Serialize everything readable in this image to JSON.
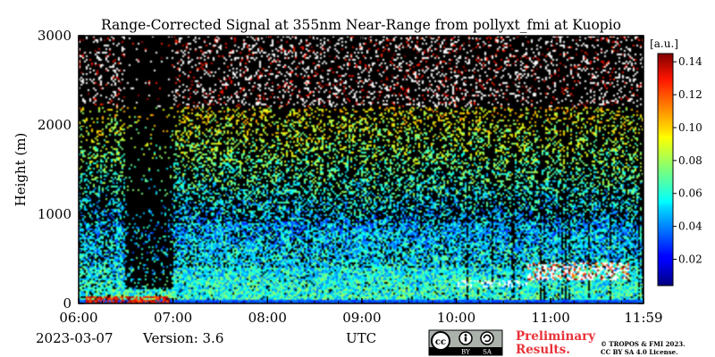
{
  "chart_data": {
    "type": "heatmap",
    "title": "Range-Corrected Signal at 355nm Near-Range from pollyxt_fmi at Kuopio",
    "ylabel": "Height (m)",
    "xlabel": "UTC",
    "x_ticks": [
      "06:00",
      "07:00",
      "08:00",
      "09:00",
      "10:00",
      "11:00",
      "11:59"
    ],
    "x_tick_hours": [
      6.0,
      7.0,
      8.0,
      9.0,
      10.0,
      11.0,
      11.983
    ],
    "xlim": [
      6.0,
      11.983
    ],
    "y_ticks": [
      0,
      1000,
      2000,
      3000
    ],
    "ylim": [
      0,
      3000
    ],
    "colorbar": {
      "unit": "[a.u.]",
      "ticks": [
        0.02,
        0.04,
        0.06,
        0.08,
        0.1,
        0.12,
        0.14
      ],
      "tick_labels": [
        "0.02",
        "0.04",
        "0.06",
        "0.08",
        "0.10",
        "0.12",
        "0.14"
      ],
      "range": [
        0.004,
        0.145
      ],
      "colormap": "jet"
    },
    "features": {
      "dense_aerosol_top_m": 900,
      "noisy_signal_top_m": 2200,
      "low_signal_interval_utc": [
        "06:30",
        "07:00"
      ],
      "surface_layer_high_values_utc": [
        "06:05",
        "06:58"
      ],
      "low_cloud_base_m": 350,
      "low_cloud_interval_utc": [
        "10:45",
        "11:50"
      ]
    }
  },
  "footer": {
    "date": "2023-03-07",
    "version": "Version: 3.6",
    "license_badge": [
      "cc",
      "BY",
      "SA"
    ],
    "preliminary_line1": "Preliminary",
    "preliminary_line2": "Results.",
    "copyright_line1": "© TROPOS & FMI 2023.",
    "copyright_line2": "CC BY SA 4.0 License."
  },
  "colors": {
    "background": "#000000",
    "preliminary_text": "#e8333a"
  }
}
